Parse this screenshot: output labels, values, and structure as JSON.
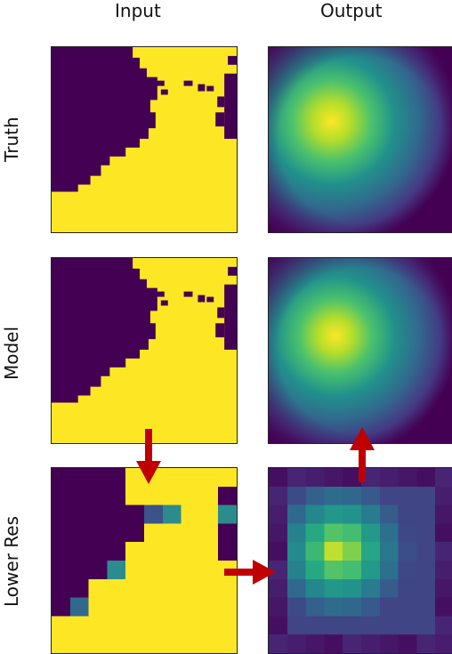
{
  "columns": {
    "input": "Input",
    "output": "Output"
  },
  "rows": {
    "truth": "Truth",
    "model": "Model",
    "lower_res": "Lower Res"
  },
  "colors": {
    "purple": "#440154",
    "yellow": "#fde725",
    "teal": "#2c8c8d",
    "arrow": "#c00000"
  }
}
